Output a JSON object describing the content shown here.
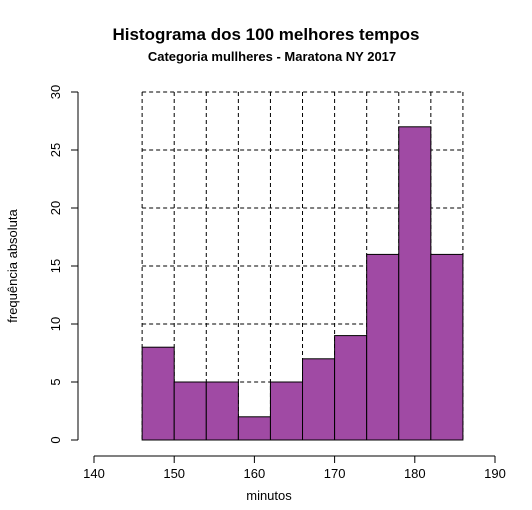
{
  "chart_data": {
    "type": "bar",
    "title": "Histograma dos 100 melhores tempos",
    "subtitle": "Categoria mullheres - Maratona NY 2017",
    "xlabel": "minutos",
    "ylabel": "frequência absoluta",
    "bin_edges": [
      146,
      150,
      154,
      158,
      162,
      166,
      170,
      174,
      178,
      182,
      186
    ],
    "values": [
      8,
      5,
      5,
      2,
      5,
      7,
      9,
      16,
      27,
      16
    ],
    "xlim": [
      140,
      190
    ],
    "ylim": [
      0,
      30
    ],
    "x_ticks": [
      "140",
      "150",
      "160",
      "170",
      "180",
      "190"
    ],
    "y_ticks": [
      "0",
      "5",
      "10",
      "15",
      "20",
      "25",
      "30"
    ],
    "grid": true,
    "bar_color": "#a04aa4"
  }
}
